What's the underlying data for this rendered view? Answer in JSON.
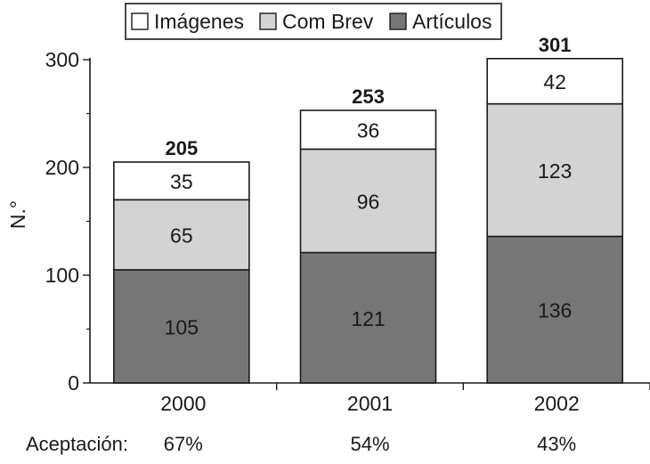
{
  "chart_data": {
    "type": "bar",
    "stacked": true,
    "categories": [
      "2000",
      "2001",
      "2002"
    ],
    "series": [
      {
        "name": "Artículos",
        "values": [
          105,
          121,
          136
        ],
        "color": "#767676"
      },
      {
        "name": "Com Brev",
        "values": [
          65,
          96,
          123
        ],
        "color": "#d3d3d3"
      },
      {
        "name": "Imágenes",
        "values": [
          35,
          36,
          42
        ],
        "color": "#ffffff"
      }
    ],
    "legend_order": [
      "Imágenes",
      "Com Brev",
      "Artículos"
    ],
    "totals": [
      "205",
      "253",
      "301"
    ],
    "ylabel": "N.°",
    "yticks": [
      0,
      100,
      200,
      300
    ],
    "ylim": [
      0,
      300
    ],
    "legend_position": "top",
    "grid": false,
    "acceptance": {
      "label": "Aceptación:",
      "values": [
        "67%",
        "54%",
        "43%"
      ]
    }
  }
}
